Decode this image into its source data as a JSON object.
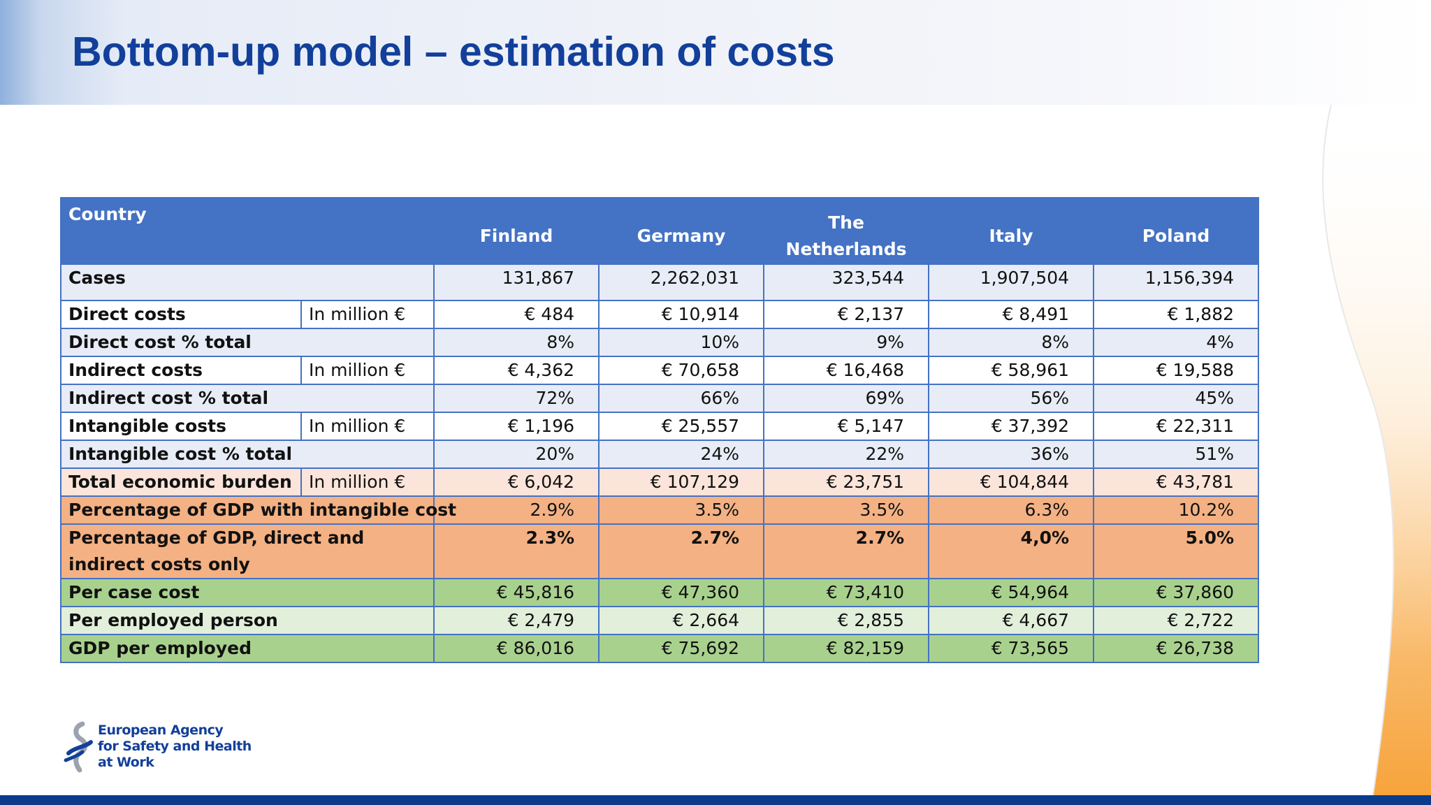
{
  "slide": {
    "title": "Bottom-up model – estimation of costs"
  },
  "table": {
    "header": {
      "country": "Country",
      "columns": [
        "Finland",
        "Germany",
        "The Netherlands",
        "Italy",
        "Poland"
      ]
    },
    "rows": [
      {
        "label": "Cases",
        "unit": "",
        "values": [
          "131,867",
          "2,262,031",
          "323,544",
          "1,907,504",
          "1,156,394"
        ]
      },
      {
        "label": "Direct costs",
        "unit": "In million €",
        "values": [
          "€ 484",
          "€ 10,914",
          "€ 2,137",
          "€ 8,491",
          "€ 1,882"
        ]
      },
      {
        "label": "Direct cost % total",
        "unit": "",
        "values": [
          "8%",
          "10%",
          "9%",
          "8%",
          "4%"
        ]
      },
      {
        "label": "Indirect costs",
        "unit": "In million €",
        "values": [
          "€ 4,362",
          "€ 70,658",
          "€ 16,468",
          "€ 58,961",
          "€ 19,588"
        ]
      },
      {
        "label": "Indirect cost % total",
        "unit": "",
        "values": [
          "72%",
          "66%",
          "69%",
          "56%",
          "45%"
        ]
      },
      {
        "label": "Intangible costs",
        "unit": "In million €",
        "values": [
          "€ 1,196",
          "€ 25,557",
          "€ 5,147",
          "€ 37,392",
          "€ 22,311"
        ]
      },
      {
        "label": "Intangible cost % total",
        "unit": "",
        "values": [
          "20%",
          "24%",
          "22%",
          "36%",
          "51%"
        ]
      },
      {
        "label": "Total economic burden",
        "unit": "In million €",
        "values": [
          "€ 6,042",
          "€ 107,129",
          "€ 23,751",
          "€ 104,844",
          "€ 43,781"
        ]
      },
      {
        "label": "Percentage of GDP with intangible cost",
        "unit": "",
        "values": [
          "2.9%",
          "3.5%",
          "3.5%",
          "6.3%",
          "10.2%"
        ]
      },
      {
        "label": "Percentage of GDP, direct and indirect costs only",
        "unit": "",
        "values": [
          "2.3%",
          "2.7%",
          "2.7%",
          "4,0%",
          "5.0%"
        ]
      },
      {
        "label": "Per case cost",
        "unit": "",
        "values": [
          "€ 45,816",
          "€ 47,360",
          "€ 73,410",
          "€ 54,964",
          "€ 37,860"
        ]
      },
      {
        "label": "Per employed person",
        "unit": "",
        "values": [
          "€ 2,479",
          "€ 2,664",
          "€ 2,855",
          "€ 4,667",
          "€ 2,722"
        ]
      },
      {
        "label": "GDP per employed",
        "unit": "",
        "values": [
          "€ 86,016",
          "€ 75,692",
          "€ 82,159",
          "€ 73,565",
          "€ 26,738"
        ]
      }
    ]
  },
  "logo": {
    "lines": [
      "European Agency",
      "for Safety and Health",
      "at Work"
    ]
  },
  "colors": {
    "title": "#123f9a",
    "header": "#4472c4",
    "row_light": "#e8ecf6",
    "row_peach": "#fbe5da",
    "row_orange": "#f4b183",
    "row_green": "#a9d18e",
    "row_light_green": "#e2efda",
    "bottom_bar": "#0b3c8c"
  }
}
